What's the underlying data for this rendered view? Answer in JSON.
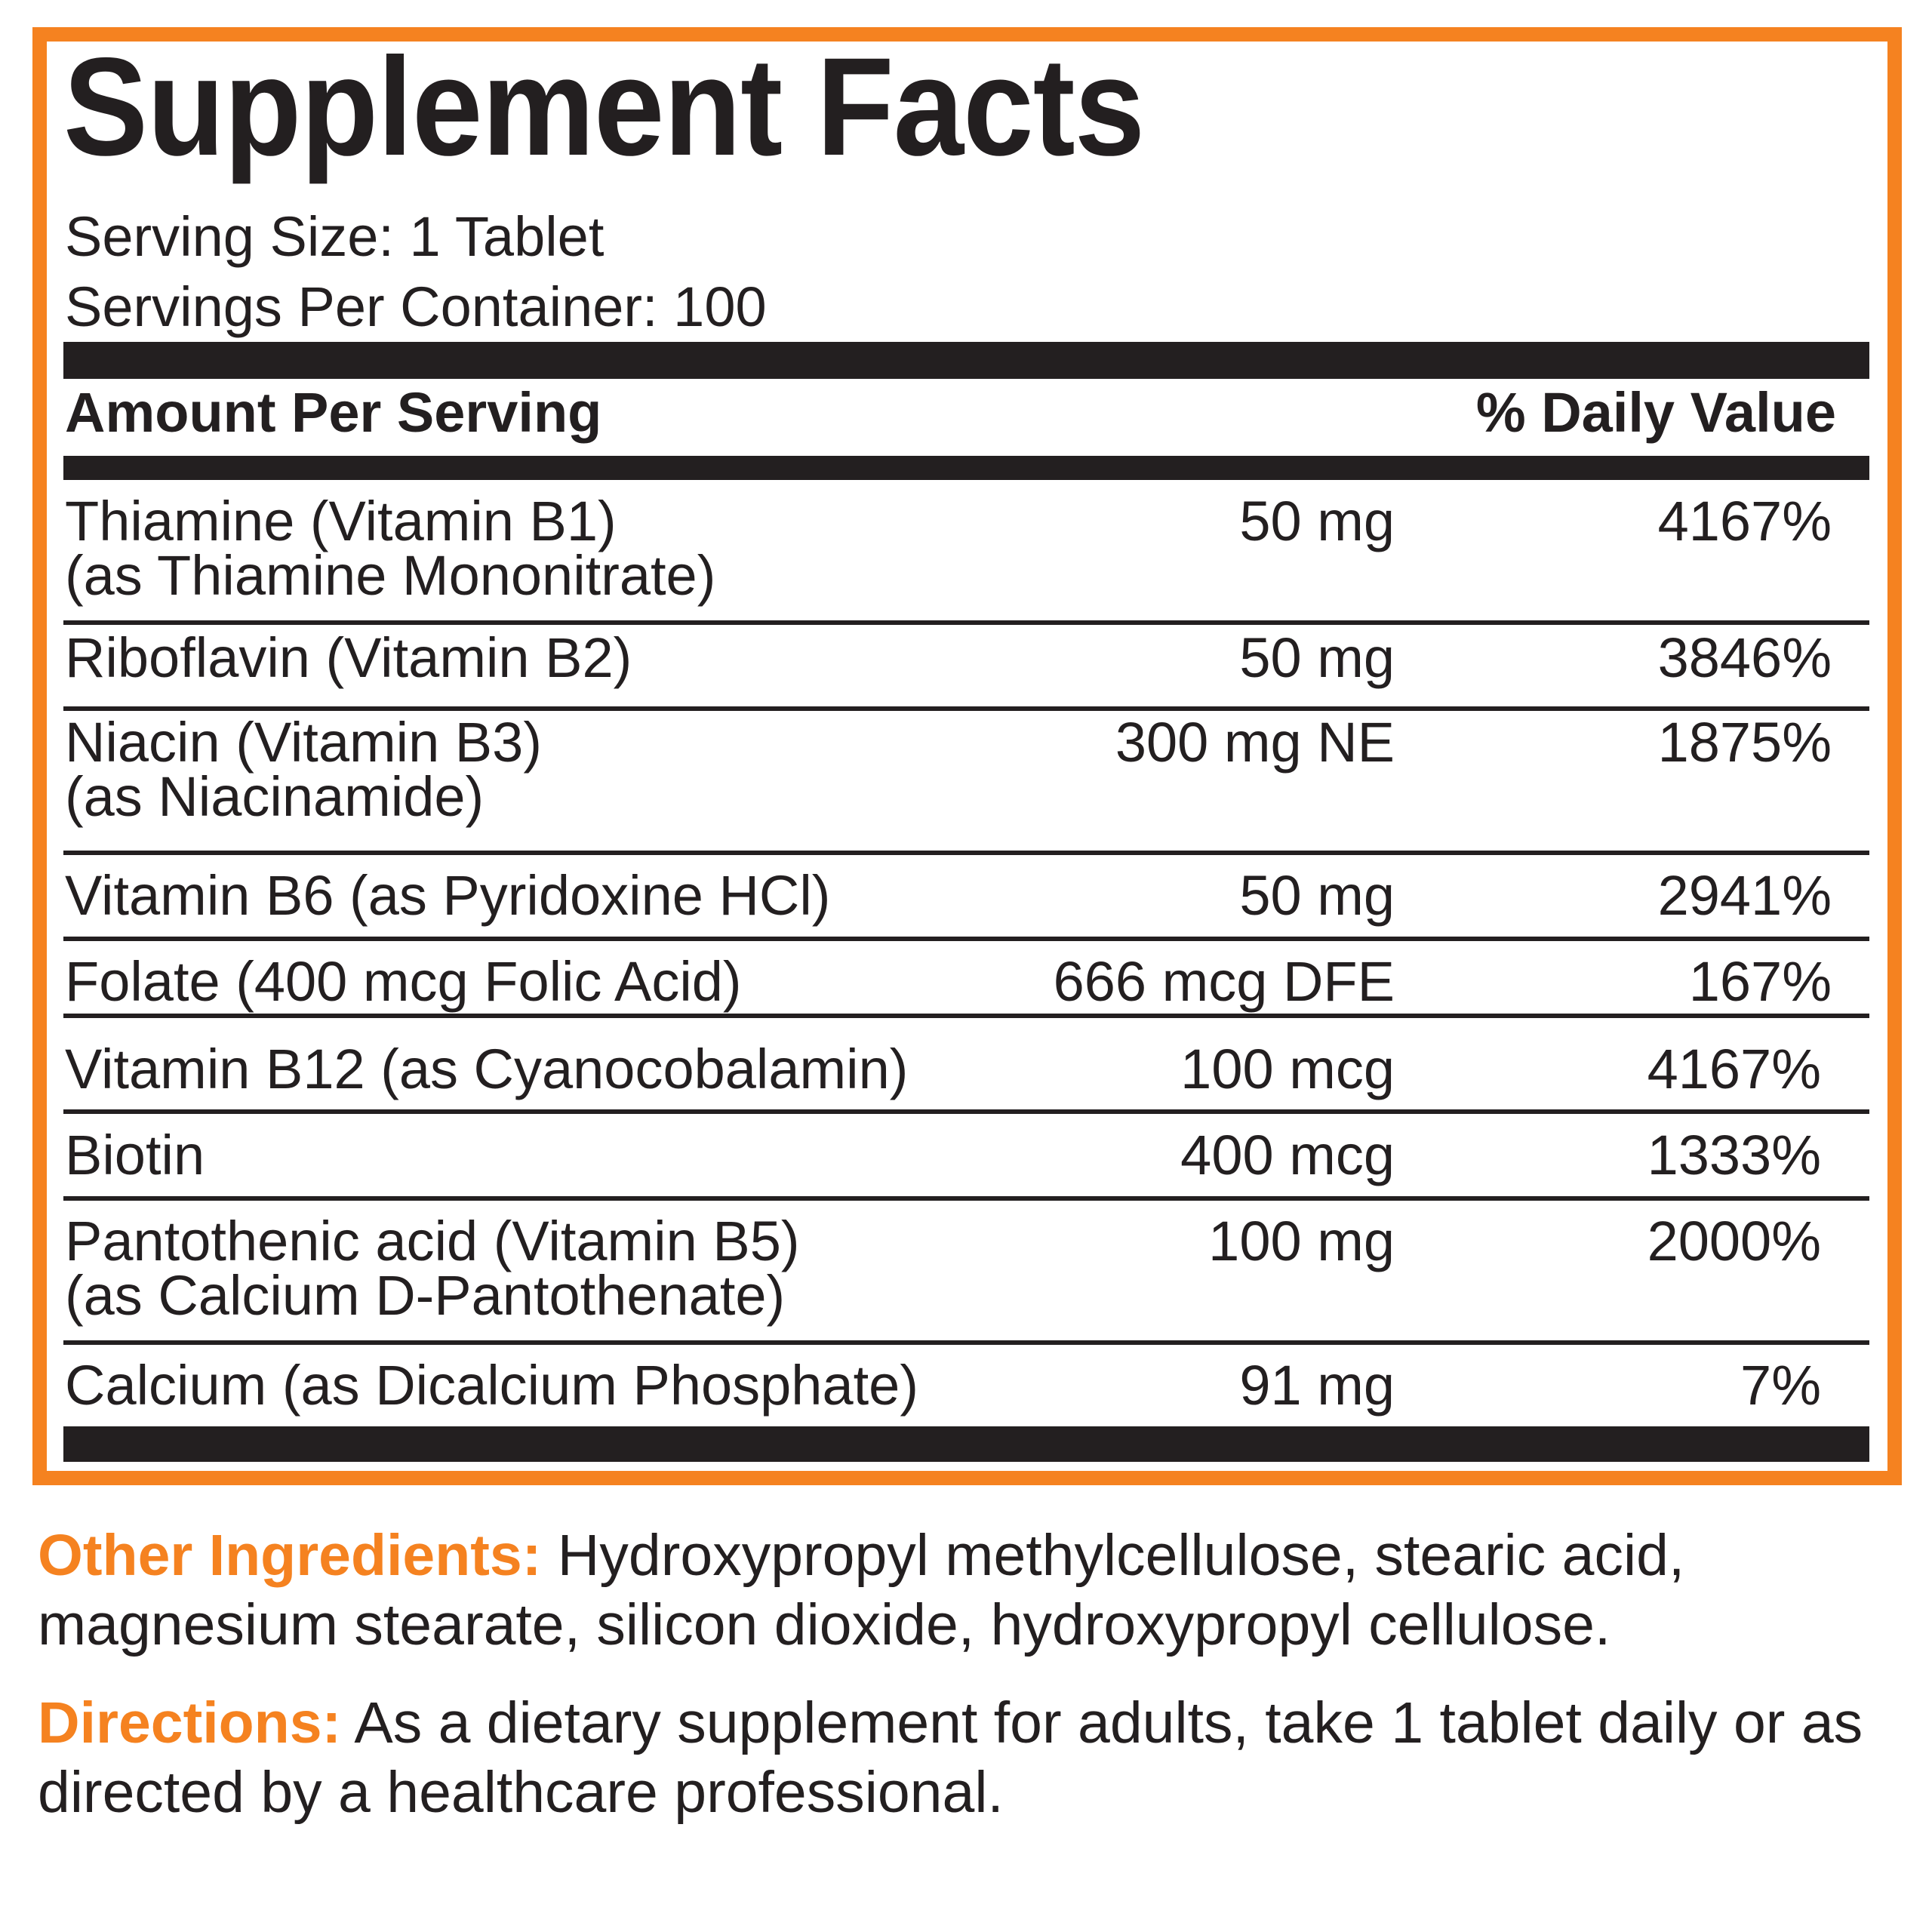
{
  "title": "Supplement Facts",
  "serving_size": "Serving Size: 1 Tablet",
  "servings_per_container": "Servings Per Container: 100",
  "column_headers": {
    "amount": "Amount Per Serving",
    "daily_value": "% Daily Value"
  },
  "rows": [
    {
      "name": [
        "Thiamine (Vitamin B1)",
        "(as Thiamine Mononitrate)"
      ],
      "amount": "50 mg",
      "dv": "4167%"
    },
    {
      "name": [
        "Riboflavin (Vitamin B2)"
      ],
      "amount": "50 mg",
      "dv": "3846%"
    },
    {
      "name": [
        "Niacin (Vitamin B3)",
        "(as Niacinamide)"
      ],
      "amount": "300 mg NE",
      "dv": "1875%"
    },
    {
      "name": [
        "Vitamin B6 (as Pyridoxine HCl)"
      ],
      "amount": "50 mg",
      "dv": "2941%"
    },
    {
      "name": [
        "Folate (400 mcg Folic Acid)"
      ],
      "amount": "666 mcg DFE",
      "dv": "167%"
    },
    {
      "name": [
        "Vitamin B12 (as Cyanocobalamin)"
      ],
      "amount": "100 mcg",
      "dv": "4167%"
    },
    {
      "name": [
        "Biotin"
      ],
      "amount": "400 mcg",
      "dv": "1333%"
    },
    {
      "name": [
        "Pantothenic acid (Vitamin B5)",
        "(as Calcium D-Pantothenate)"
      ],
      "amount": "100 mg",
      "dv": "2000%"
    },
    {
      "name": [
        "Calcium (as Dicalcium Phosphate)"
      ],
      "amount": "91 mg",
      "dv": "7%"
    }
  ],
  "other_ingredients": {
    "label": "Other Ingredients:",
    "lines": [
      " Hydroxypropyl methylcellulose, stearic acid,",
      "magnesium stearate, silicon dioxide, hydroxypropyl cellulose."
    ]
  },
  "directions": {
    "label": "Directions:",
    "lines": [
      " As a dietary supplement for adults, take 1 tablet daily or as",
      "directed by a healthcare professional."
    ]
  },
  "colors": {
    "accent_orange": "#F58220",
    "text_black": "#231F20",
    "background": "#FFFFFF"
  }
}
